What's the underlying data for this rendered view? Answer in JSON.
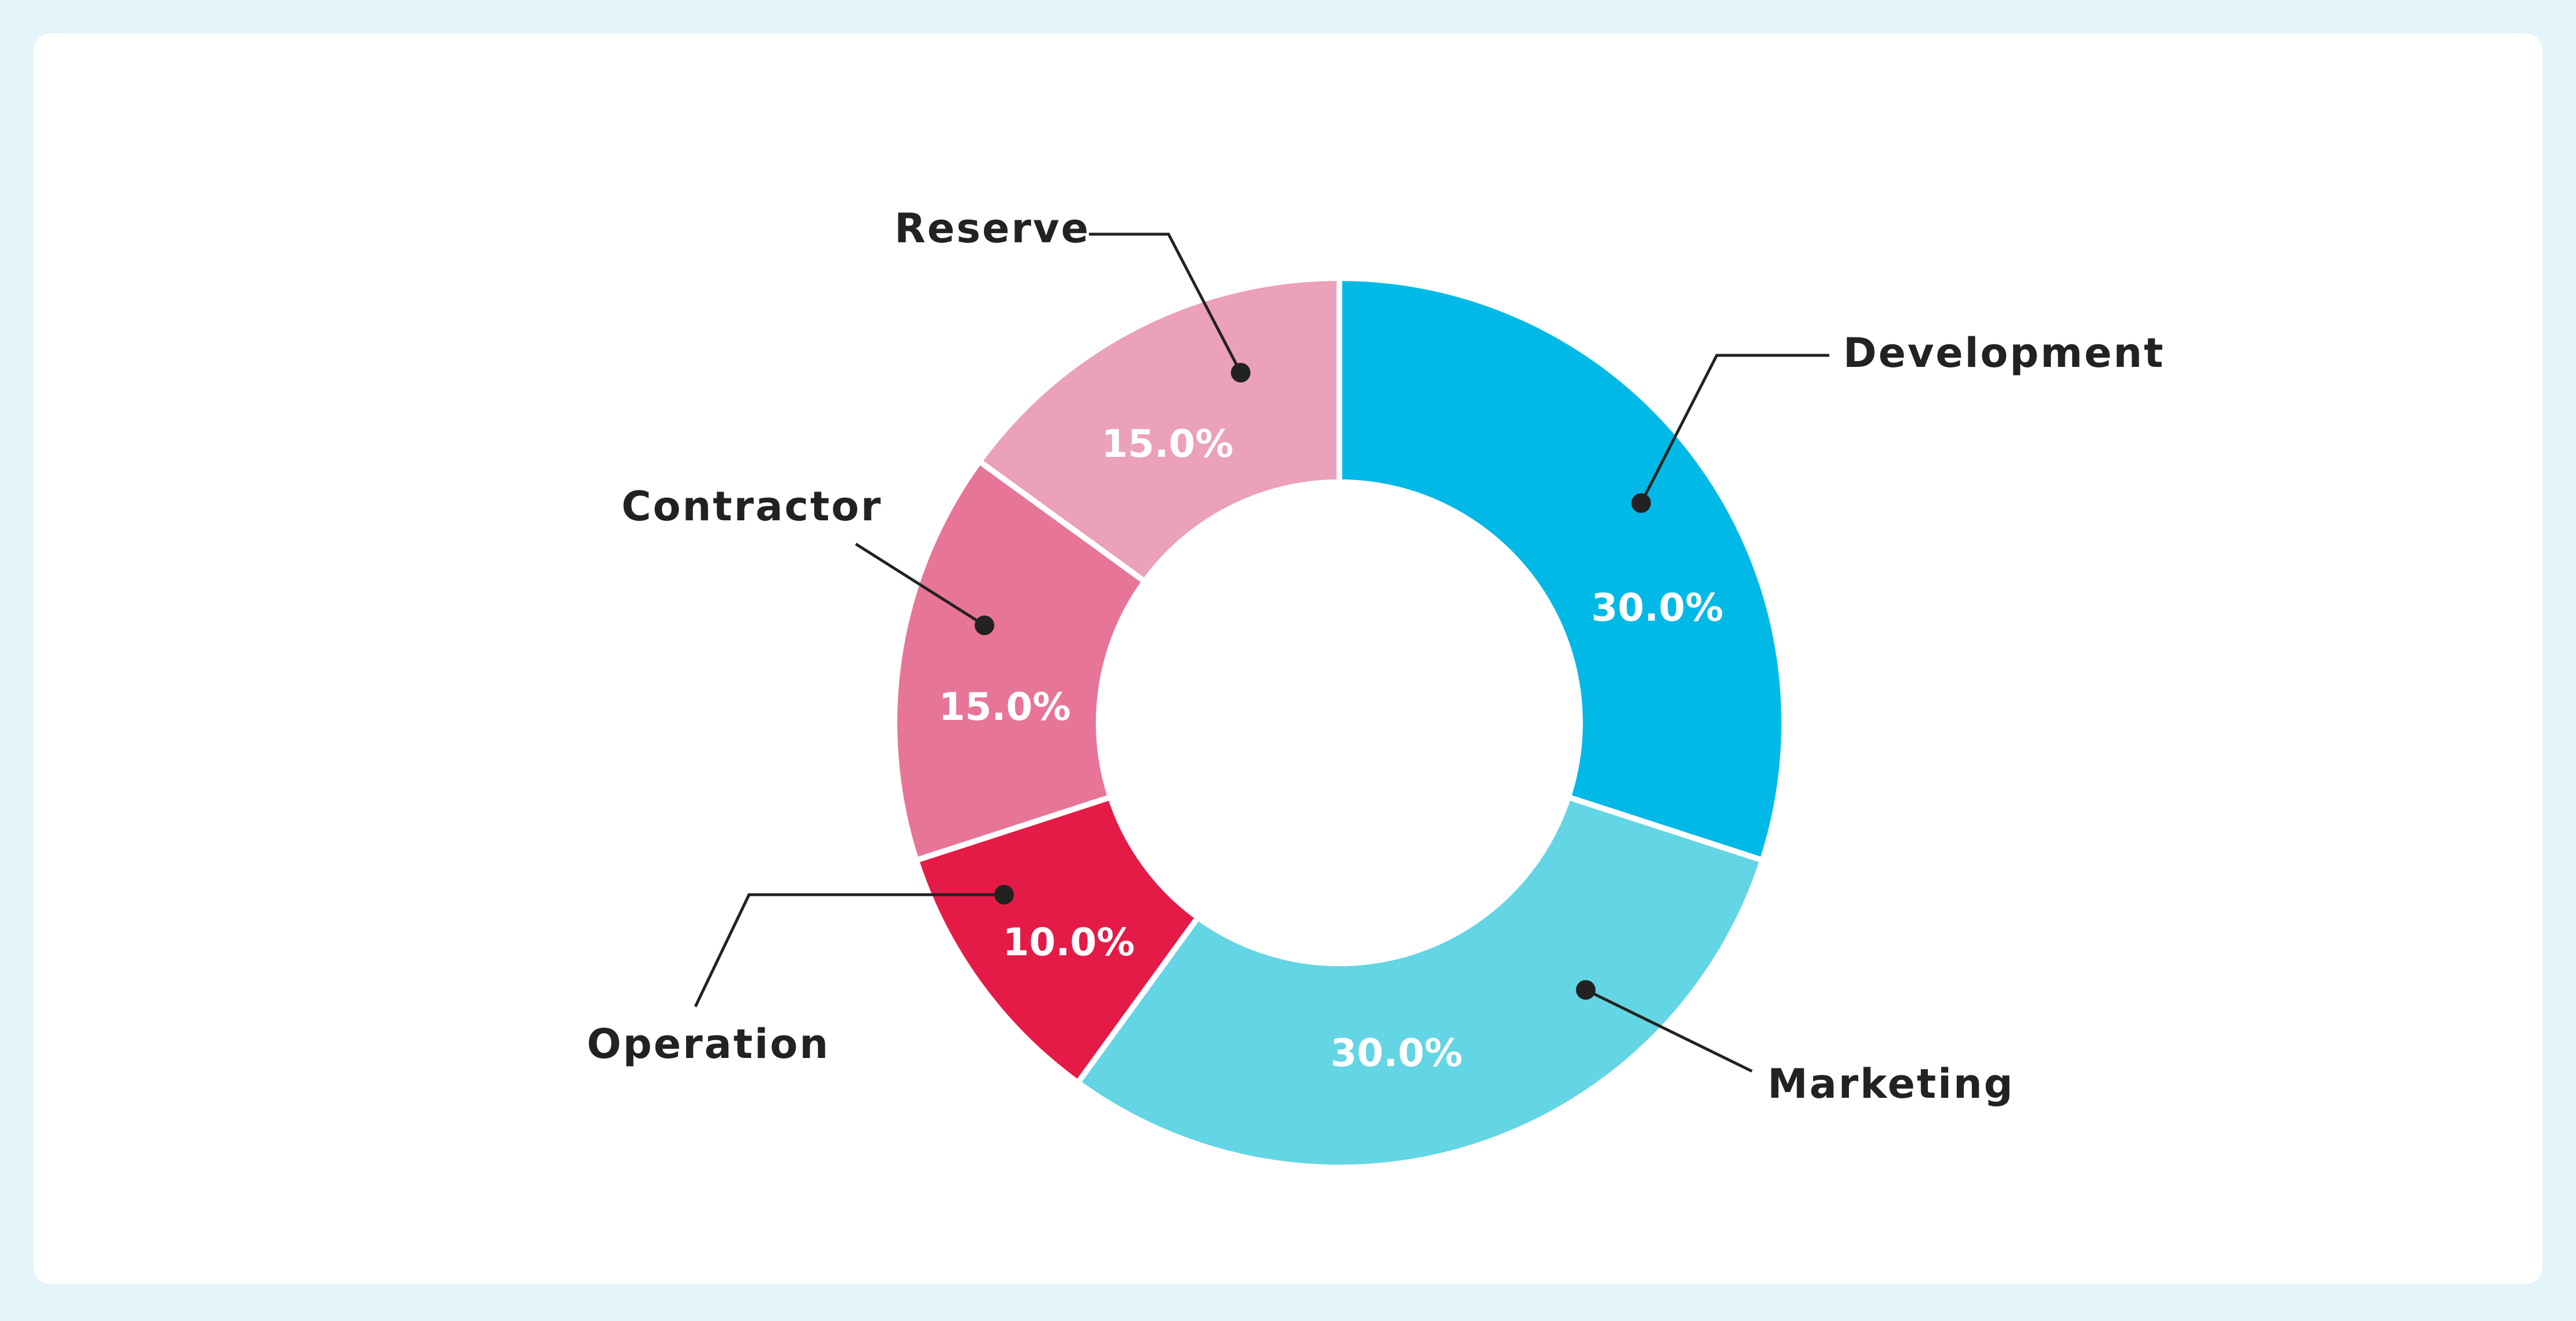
{
  "chart_data": {
    "type": "pie",
    "title": "",
    "categories": [
      "Development",
      "Marketing",
      "Operation",
      "Contractor",
      "Reserve"
    ],
    "values": [
      30.0,
      30.0,
      10.0,
      15.0,
      15.0
    ],
    "value_labels": [
      "30.0%",
      "30.0%",
      "10.0%",
      "15.0%",
      "15.0%"
    ],
    "colors": [
      "#00b9e7",
      "#63d5e4",
      "#e41b46",
      "#e77598",
      "#eba0bb"
    ],
    "donut": true,
    "start_angle_deg": 0,
    "direction": "clockwise",
    "legend": "callout labels"
  }
}
